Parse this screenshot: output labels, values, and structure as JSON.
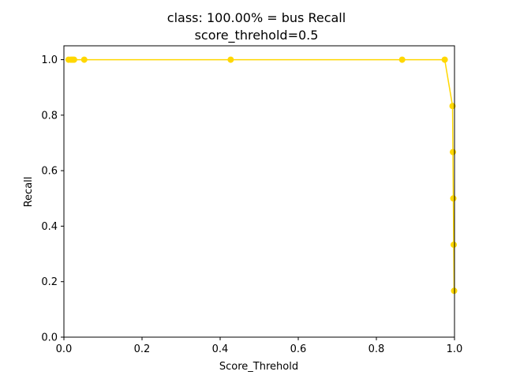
{
  "chart_data": {
    "type": "line",
    "title": "class: 100.00% = bus Recall",
    "subtitle": "score_threhold=0.5",
    "xlabel": "Score_Threhold",
    "ylabel": "Recall",
    "xlim": [
      0.0,
      1.0
    ],
    "ylim": [
      0.0,
      1.05
    ],
    "x_ticks": [
      "0.0",
      "0.2",
      "0.4",
      "0.6",
      "0.8",
      "1.0"
    ],
    "y_ticks": [
      "0.0",
      "0.2",
      "0.4",
      "0.6",
      "0.8",
      "1.0"
    ],
    "grid": false,
    "color": "#ffd700",
    "series": [
      {
        "x": [
          0.012,
          0.018,
          0.022,
          0.026,
          0.052,
          0.427,
          0.866,
          0.975,
          0.995,
          0.996,
          0.997,
          0.998,
          0.999
        ],
        "y": [
          1.0,
          1.0,
          1.0,
          1.0,
          1.0,
          1.0,
          1.0,
          1.0,
          0.833,
          0.667,
          0.5,
          0.333,
          0.167
        ]
      }
    ]
  }
}
